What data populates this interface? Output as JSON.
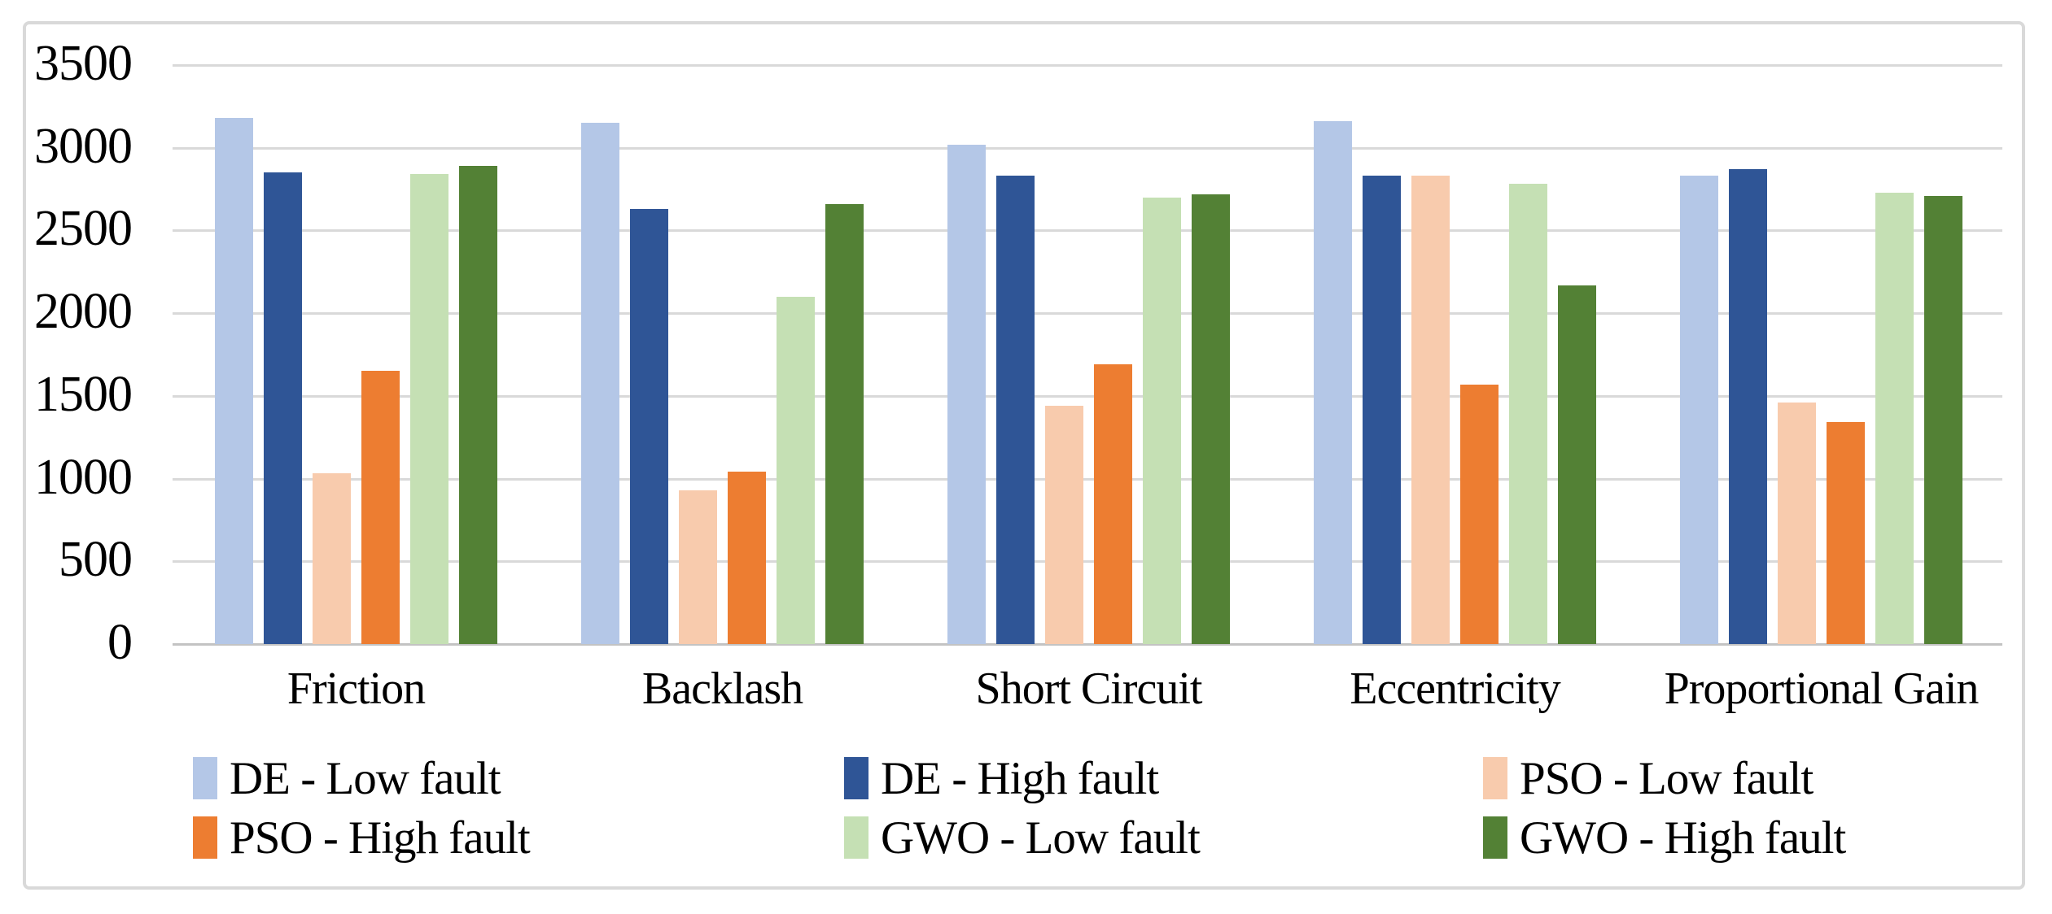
{
  "chart_data": {
    "type": "bar",
    "title": "",
    "categories": [
      "Friction",
      "Backlash",
      "Short Circuit",
      "Eccentricity",
      "Proportional Gain"
    ],
    "series": [
      {
        "name": "DE - Low fault",
        "color": "#b4c7e7",
        "values": [
          3180,
          3150,
          3020,
          3160,
          2830
        ]
      },
      {
        "name": "DE - High fault",
        "color": "#2f5596",
        "values": [
          2850,
          2630,
          2830,
          2830,
          2870
        ]
      },
      {
        "name": "PSO - Low fault",
        "color": "#f8cbad",
        "values": [
          1030,
          930,
          1440,
          2830,
          1460
        ]
      },
      {
        "name": "PSO - High fault",
        "color": "#ed7d31",
        "values": [
          1650,
          1040,
          1690,
          1570,
          1340
        ]
      },
      {
        "name": "GWO - Low fault",
        "color": "#c5e0b4",
        "values": [
          2840,
          2100,
          2700,
          2780,
          2730
        ]
      },
      {
        "name": "GWO - High fault",
        "color": "#538135",
        "values": [
          2890,
          2660,
          2720,
          2170,
          2710
        ]
      }
    ],
    "ylim": [
      0,
      3500
    ],
    "yticks": [
      0,
      500,
      1000,
      1500,
      2000,
      2500,
      3000,
      3500
    ],
    "xlabel": "",
    "ylabel": "",
    "grid": "horizontal",
    "legend_position": "bottom",
    "legend_rows": 2,
    "legend_columns": 3
  },
  "styles": {
    "frame_border_color": "#d9d9d9",
    "gridline_color": "#d9d9d9",
    "zero_line_color": "#c3c3c3",
    "text_color": "#000000",
    "background_color": "#ffffff"
  }
}
